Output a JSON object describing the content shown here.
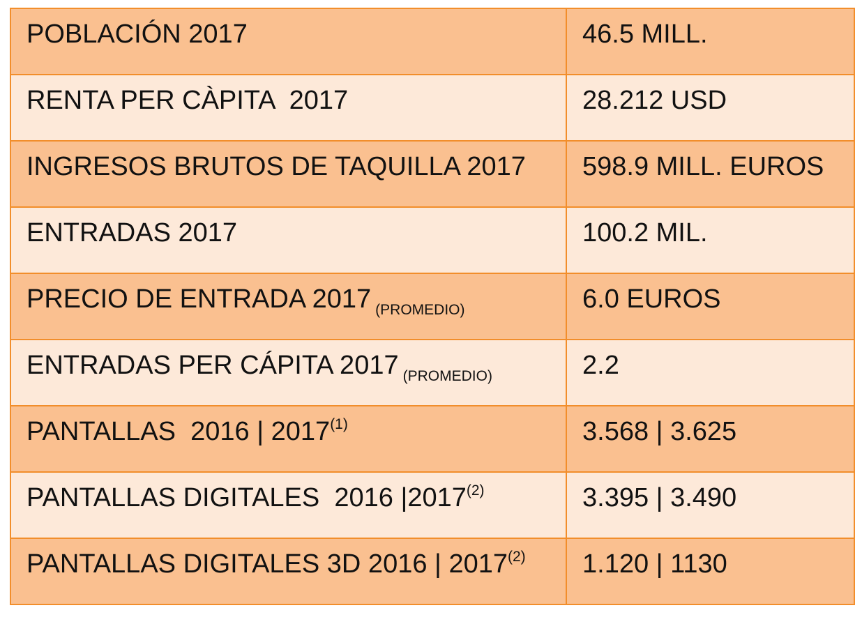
{
  "table": {
    "rows": [
      {
        "label": "POBLACIÓN 2017",
        "value": "46.5 MILL."
      },
      {
        "label": "RENTA PER CÀPITA  2017",
        "value": "28.212 USD"
      },
      {
        "label": "INGRESOS BRUTOS DE TAQUILLA 2017",
        "value": "598.9 MILL. EUROS"
      },
      {
        "label": "ENTRADAS 2017",
        "value": "100.2 MIL."
      },
      {
        "label": "PRECIO DE ENTRADA 2017",
        "note": "(PROMEDIO)",
        "value": "6.0 EUROS"
      },
      {
        "label": "ENTRADAS PER CÁPITA 2017",
        "note": "(PROMEDIO)",
        "value": "2.2"
      },
      {
        "label": "PANTALLAS  2016 | 2017",
        "sup": "(1)",
        "value": "3.568 | 3.625"
      },
      {
        "label": "PANTALLAS DIGITALES  2016 |2017",
        "sup": "(2)",
        "value": "3.395 | 3.490"
      },
      {
        "label": "PANTALLAS DIGITALES 3D 2016 | 2017",
        "sup": "(2)",
        "value": "1.120 | 1130"
      }
    ],
    "colors": {
      "dark_row": "#fac090",
      "light_row": "#fde9d9",
      "border": "#f28e2b"
    }
  }
}
